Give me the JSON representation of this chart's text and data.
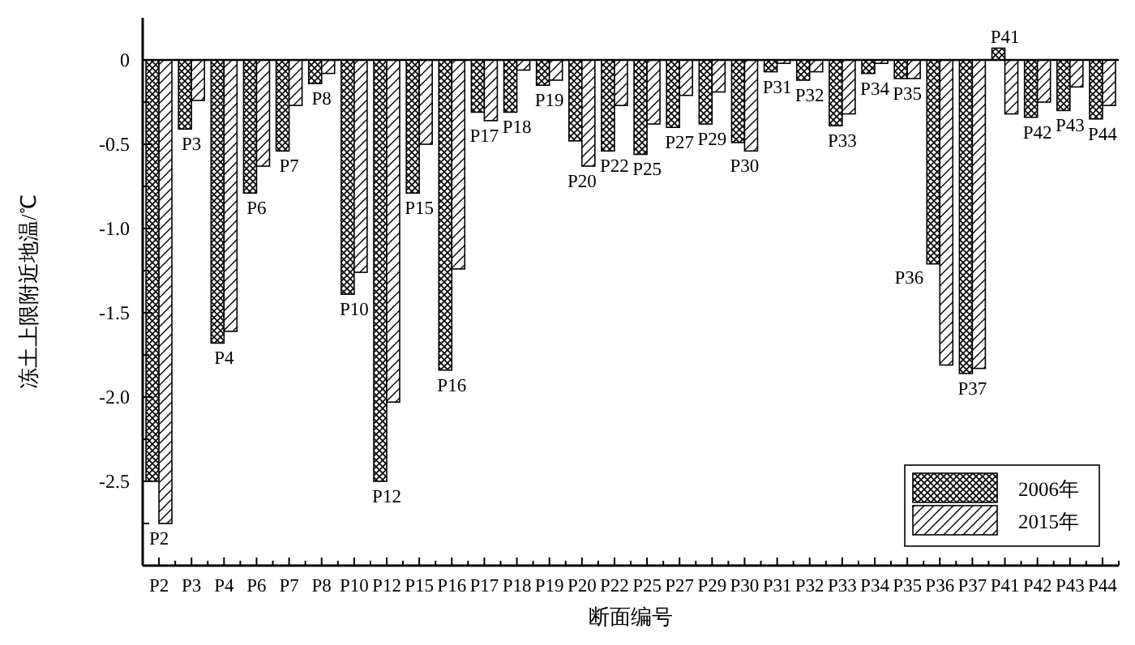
{
  "chart_data": {
    "type": "bar",
    "xlabel": "断面编号",
    "ylabel": "冻土上限附近地温/℃",
    "categories": [
      "P2",
      "P3",
      "P4",
      "P6",
      "P7",
      "P8",
      "P10",
      "P12",
      "P15",
      "P16",
      "P17",
      "P18",
      "P19",
      "P20",
      "P22",
      "P25",
      "P27",
      "P29",
      "P30",
      "P31",
      "P32",
      "P33",
      "P34",
      "P35",
      "P36",
      "P37",
      "P41",
      "P42",
      "P43",
      "P44"
    ],
    "series": [
      {
        "name": "2006年",
        "color": "#000000",
        "values": [
          -2.5,
          -0.41,
          -1.68,
          -0.79,
          -0.54,
          -0.14,
          -1.39,
          -2.5,
          -0.79,
          -1.84,
          -0.31,
          -0.31,
          -0.15,
          -0.48,
          -0.54,
          -0.56,
          -0.4,
          -0.38,
          -0.49,
          -0.07,
          -0.12,
          -0.39,
          -0.08,
          -0.11,
          -1.21,
          -1.86,
          0.07,
          -0.34,
          -0.3,
          -0.35
        ]
      },
      {
        "name": "2015年",
        "color": "#000000",
        "values": [
          -2.75,
          -0.24,
          -1.61,
          -0.63,
          -0.27,
          -0.08,
          -1.26,
          -2.03,
          -0.5,
          -1.24,
          -0.36,
          -0.06,
          -0.12,
          -0.63,
          -0.27,
          -0.38,
          -0.21,
          -0.19,
          -0.54,
          -0.02,
          -0.07,
          -0.32,
          -0.02,
          -0.11,
          -1.81,
          -1.83,
          -0.32,
          -0.25,
          -0.16,
          -0.27
        ]
      }
    ],
    "ylim": [
      -3.0,
      0.25
    ],
    "yticks": [
      0,
      -0.5,
      {
        "value": -1.0,
        "label": "-1.0"
      },
      {
        "value": -1.5,
        "label": "-1.5"
      },
      {
        "value": -2.0,
        "label": "-2.0"
      },
      {
        "value": -2.5,
        "label": "-2.5"
      },
      {
        "value": -0.25,
        "label": null
      },
      {
        "value": -0.75,
        "label": null
      },
      {
        "value": -1.25,
        "label": null
      },
      {
        "value": -1.75,
        "label": null
      },
      {
        "value": -2.25,
        "label": null
      },
      {
        "value": -2.75,
        "label": null
      }
    ],
    "grid": false,
    "ref_lines": [
      {
        "axis": "y",
        "value": 0,
        "color": "#000000",
        "line_style": "solid"
      }
    ],
    "legend": "bottom right",
    "annotations": [
      {
        "text": "P2",
        "x": "P2",
        "y": -2.5
      },
      {
        "text": "P3",
        "x": "P3",
        "y": -0.41
      },
      {
        "text": "P4",
        "x": "P4",
        "y": -1.68
      },
      {
        "text": "P6",
        "x": "P6",
        "y": -0.79
      },
      {
        "text": "P7",
        "x": "P7",
        "y": -0.54
      },
      {
        "text": "P8",
        "x": "P8",
        "y": -0.14
      },
      {
        "text": "P10",
        "x": "P10",
        "y": -1.39
      },
      {
        "text": "P12",
        "x": "P12",
        "y": -2.5
      },
      {
        "text": "P15",
        "x": "P15",
        "y": -0.79
      },
      {
        "text": "P16",
        "x": "P16",
        "y": -1.84
      },
      {
        "text": "P17",
        "x": "P17",
        "y": -0.31
      },
      {
        "text": "P18",
        "x": "P18",
        "y": -0.31
      },
      {
        "text": "P19",
        "x": "P19",
        "y": -0.15
      },
      {
        "text": "P20",
        "x": "P20",
        "y": -0.48
      },
      {
        "text": "P22",
        "x": "P22",
        "y": -0.54
      },
      {
        "text": "P25",
        "x": "P25",
        "y": -0.56
      },
      {
        "text": "P27",
        "x": "P27",
        "y": -0.4
      },
      {
        "text": "P29",
        "x": "P29",
        "y": -0.38
      },
      {
        "text": "P30",
        "x": "P30",
        "y": -0.49
      },
      {
        "text": "P31",
        "x": "P31",
        "y": -0.07
      },
      {
        "text": "P32",
        "x": "P32",
        "y": -0.12
      },
      {
        "text": "P33",
        "x": "P33",
        "y": -0.39
      },
      {
        "text": "P34",
        "x": "P34",
        "y": -0.08
      },
      {
        "text": "P35",
        "x": "P35",
        "y": -0.11
      },
      {
        "text": "P36",
        "x": "P36",
        "y": -1.21
      },
      {
        "text": "P37",
        "x": "P37",
        "y": -1.86
      },
      {
        "text": "P41",
        "x": "P41",
        "y": 0.07
      },
      {
        "text": "P42",
        "x": "P42",
        "y": -0.34
      },
      {
        "text": "P43",
        "x": "P43",
        "y": -0.3
      },
      {
        "text": "P44",
        "x": "P44",
        "y": -0.35
      }
    ]
  }
}
